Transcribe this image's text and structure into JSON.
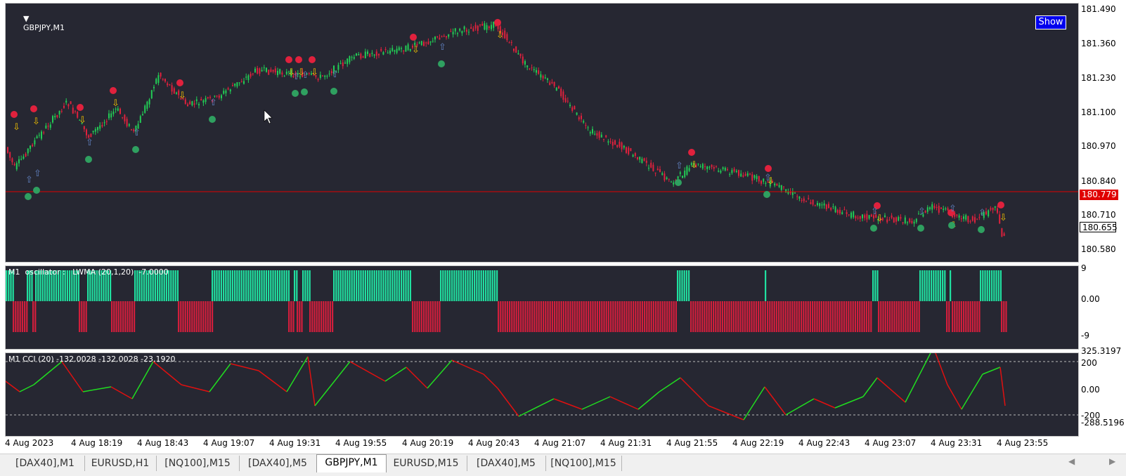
{
  "chart": {
    "main_label": "GBPJPY,M1",
    "show_button": "Show",
    "current_price": "180.779",
    "bid_price": "180.655",
    "price_ticks": [
      "181.490",
      "181.360",
      "181.230",
      "181.100",
      "180.970",
      "180.840",
      "180.710",
      "180.580"
    ],
    "osc_label": "M1  oscillator :   LWMA (20,1,20)  -7.0000",
    "osc_ticks": [
      "9",
      "0.00",
      "-9"
    ],
    "cci_label": "M1 CCI (20) -132.0028 -132.0028 -23.1920",
    "cci_ticks": [
      "325.3197",
      "200",
      "0.00",
      "-200",
      "-288.5196"
    ],
    "time_labels": [
      "4 Aug 2023",
      "4 Aug 18:19",
      "4 Aug 18:43",
      "4 Aug 19:07",
      "4 Aug 19:31",
      "4 Aug 19:55",
      "4 Aug 20:19",
      "4 Aug 20:43",
      "4 Aug 21:07",
      "4 Aug 21:31",
      "4 Aug 21:55",
      "4 Aug 22:19",
      "4 Aug 22:43",
      "4 Aug 23:07",
      "4 Aug 23:31",
      "4 Aug 23:55"
    ],
    "colors": {
      "background": "#262732",
      "bull": "#22cc55",
      "bear": "#e0213d",
      "osc_up": "#20e0a0",
      "osc_down": "#d21e3c",
      "price_line": "#e00000"
    }
  },
  "tabs": [
    "[DAX40],M1",
    "EURUSD,H1",
    "[NQ100],M15",
    "[DAX40],M5",
    "GBPJPY,M1",
    "EURUSD,M15",
    "[DAX40],M5",
    "[NQ100],M15"
  ],
  "active_tab": "GBPJPY,M1"
}
